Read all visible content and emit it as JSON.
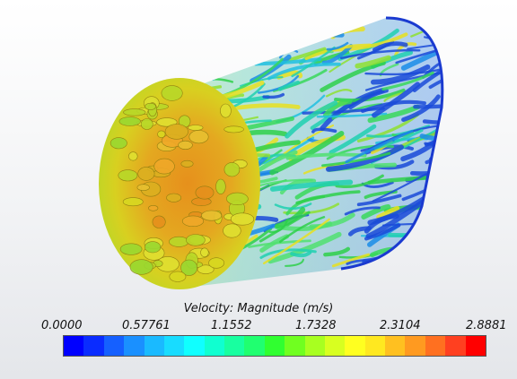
{
  "legend": {
    "title": "Velocity: Magnitude (m/s)",
    "min": 0.0,
    "max": 2.8881,
    "ticks": [
      "0.0000",
      "0.57761",
      "1.1552",
      "1.7328",
      "2.3104",
      "2.8881"
    ],
    "colors": [
      "#0000ff",
      "#0a2cff",
      "#1560ff",
      "#1a90ff",
      "#1abaff",
      "#18dcff",
      "#10ffff",
      "#10ffd0",
      "#18ffa0",
      "#20ff70",
      "#30ff30",
      "#70ff20",
      "#a8ff20",
      "#d8ff20",
      "#ffff20",
      "#ffe820",
      "#ffc020",
      "#ff9a20",
      "#ff7020",
      "#ff4020",
      "#ff0000"
    ]
  },
  "scene": {
    "description_colors": {
      "inlet_core": "#e89a1e",
      "inlet_mid": "#d6c21c",
      "fiber_green": "#2ed04a",
      "fiber_yellow": "#e8e020",
      "fiber_cyan": "#20c0e0",
      "fiber_blue": "#1a4ad8"
    }
  }
}
